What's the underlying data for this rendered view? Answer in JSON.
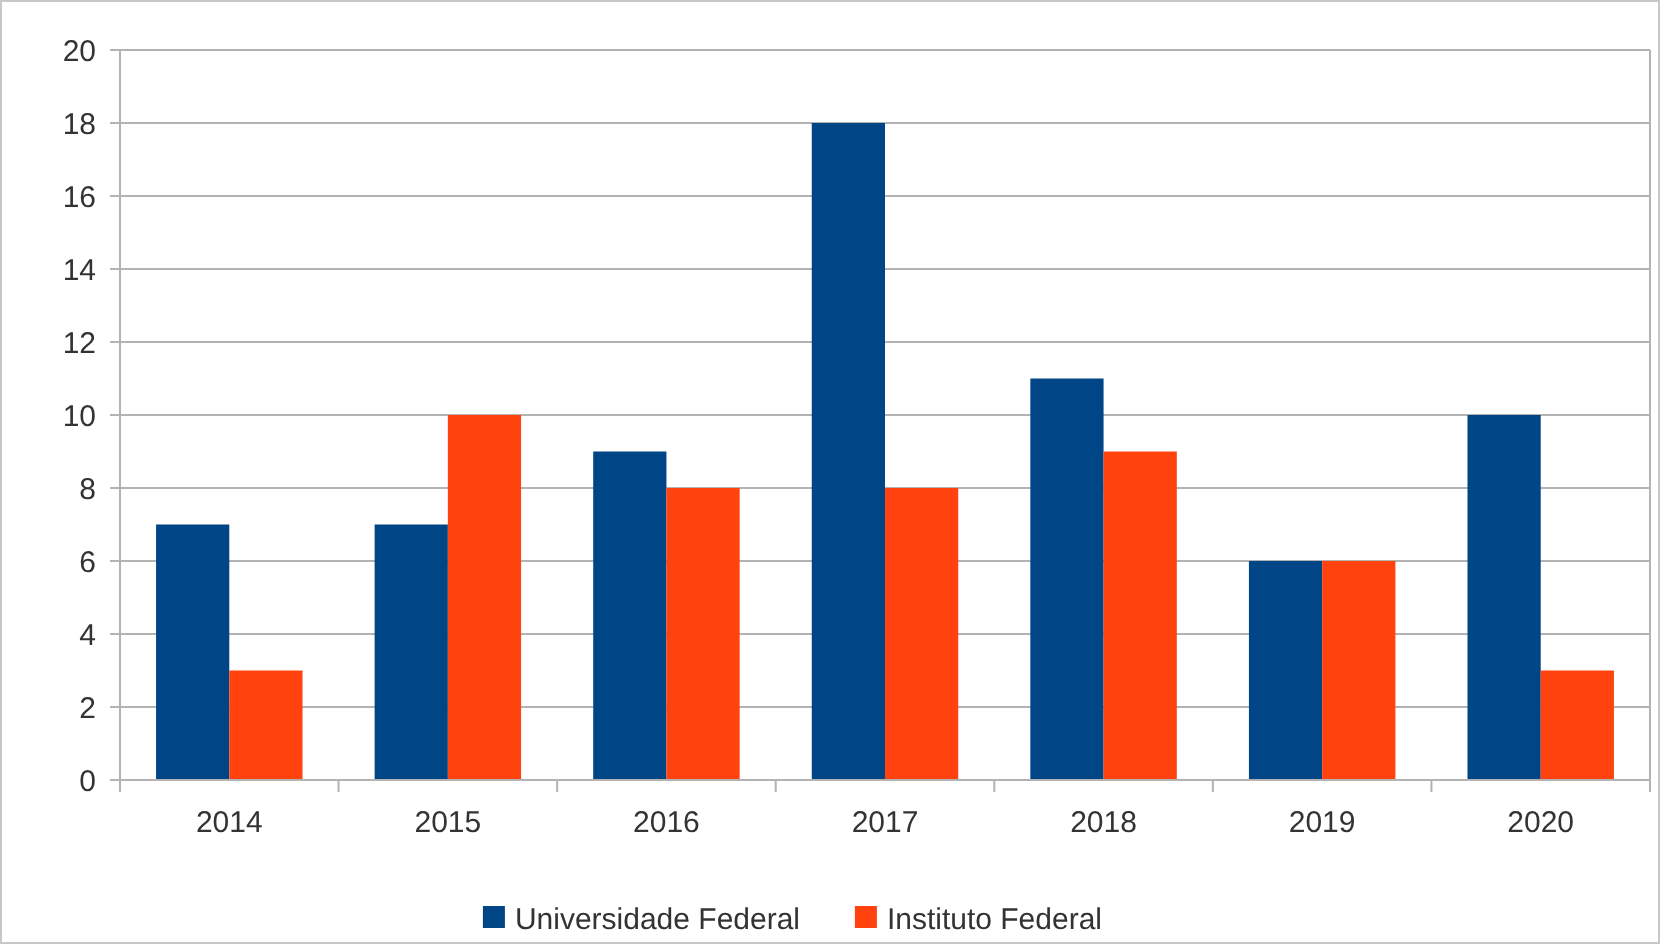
{
  "chart_data": {
    "type": "bar",
    "categories": [
      "2014",
      "2015",
      "2016",
      "2017",
      "2018",
      "2019",
      "2020"
    ],
    "series": [
      {
        "name": "Universidade Federal",
        "color": "#004586",
        "values": [
          7,
          7,
          9,
          18,
          11,
          6,
          10
        ]
      },
      {
        "name": "Instituto Federal",
        "color": "#ff420e",
        "values": [
          3,
          10,
          8,
          8,
          9,
          6,
          3
        ]
      }
    ],
    "ylim": [
      0,
      20
    ],
    "yticks": [
      0,
      2,
      4,
      6,
      8,
      10,
      12,
      14,
      16,
      18,
      20
    ],
    "grid": "y",
    "legend": "bottom"
  }
}
